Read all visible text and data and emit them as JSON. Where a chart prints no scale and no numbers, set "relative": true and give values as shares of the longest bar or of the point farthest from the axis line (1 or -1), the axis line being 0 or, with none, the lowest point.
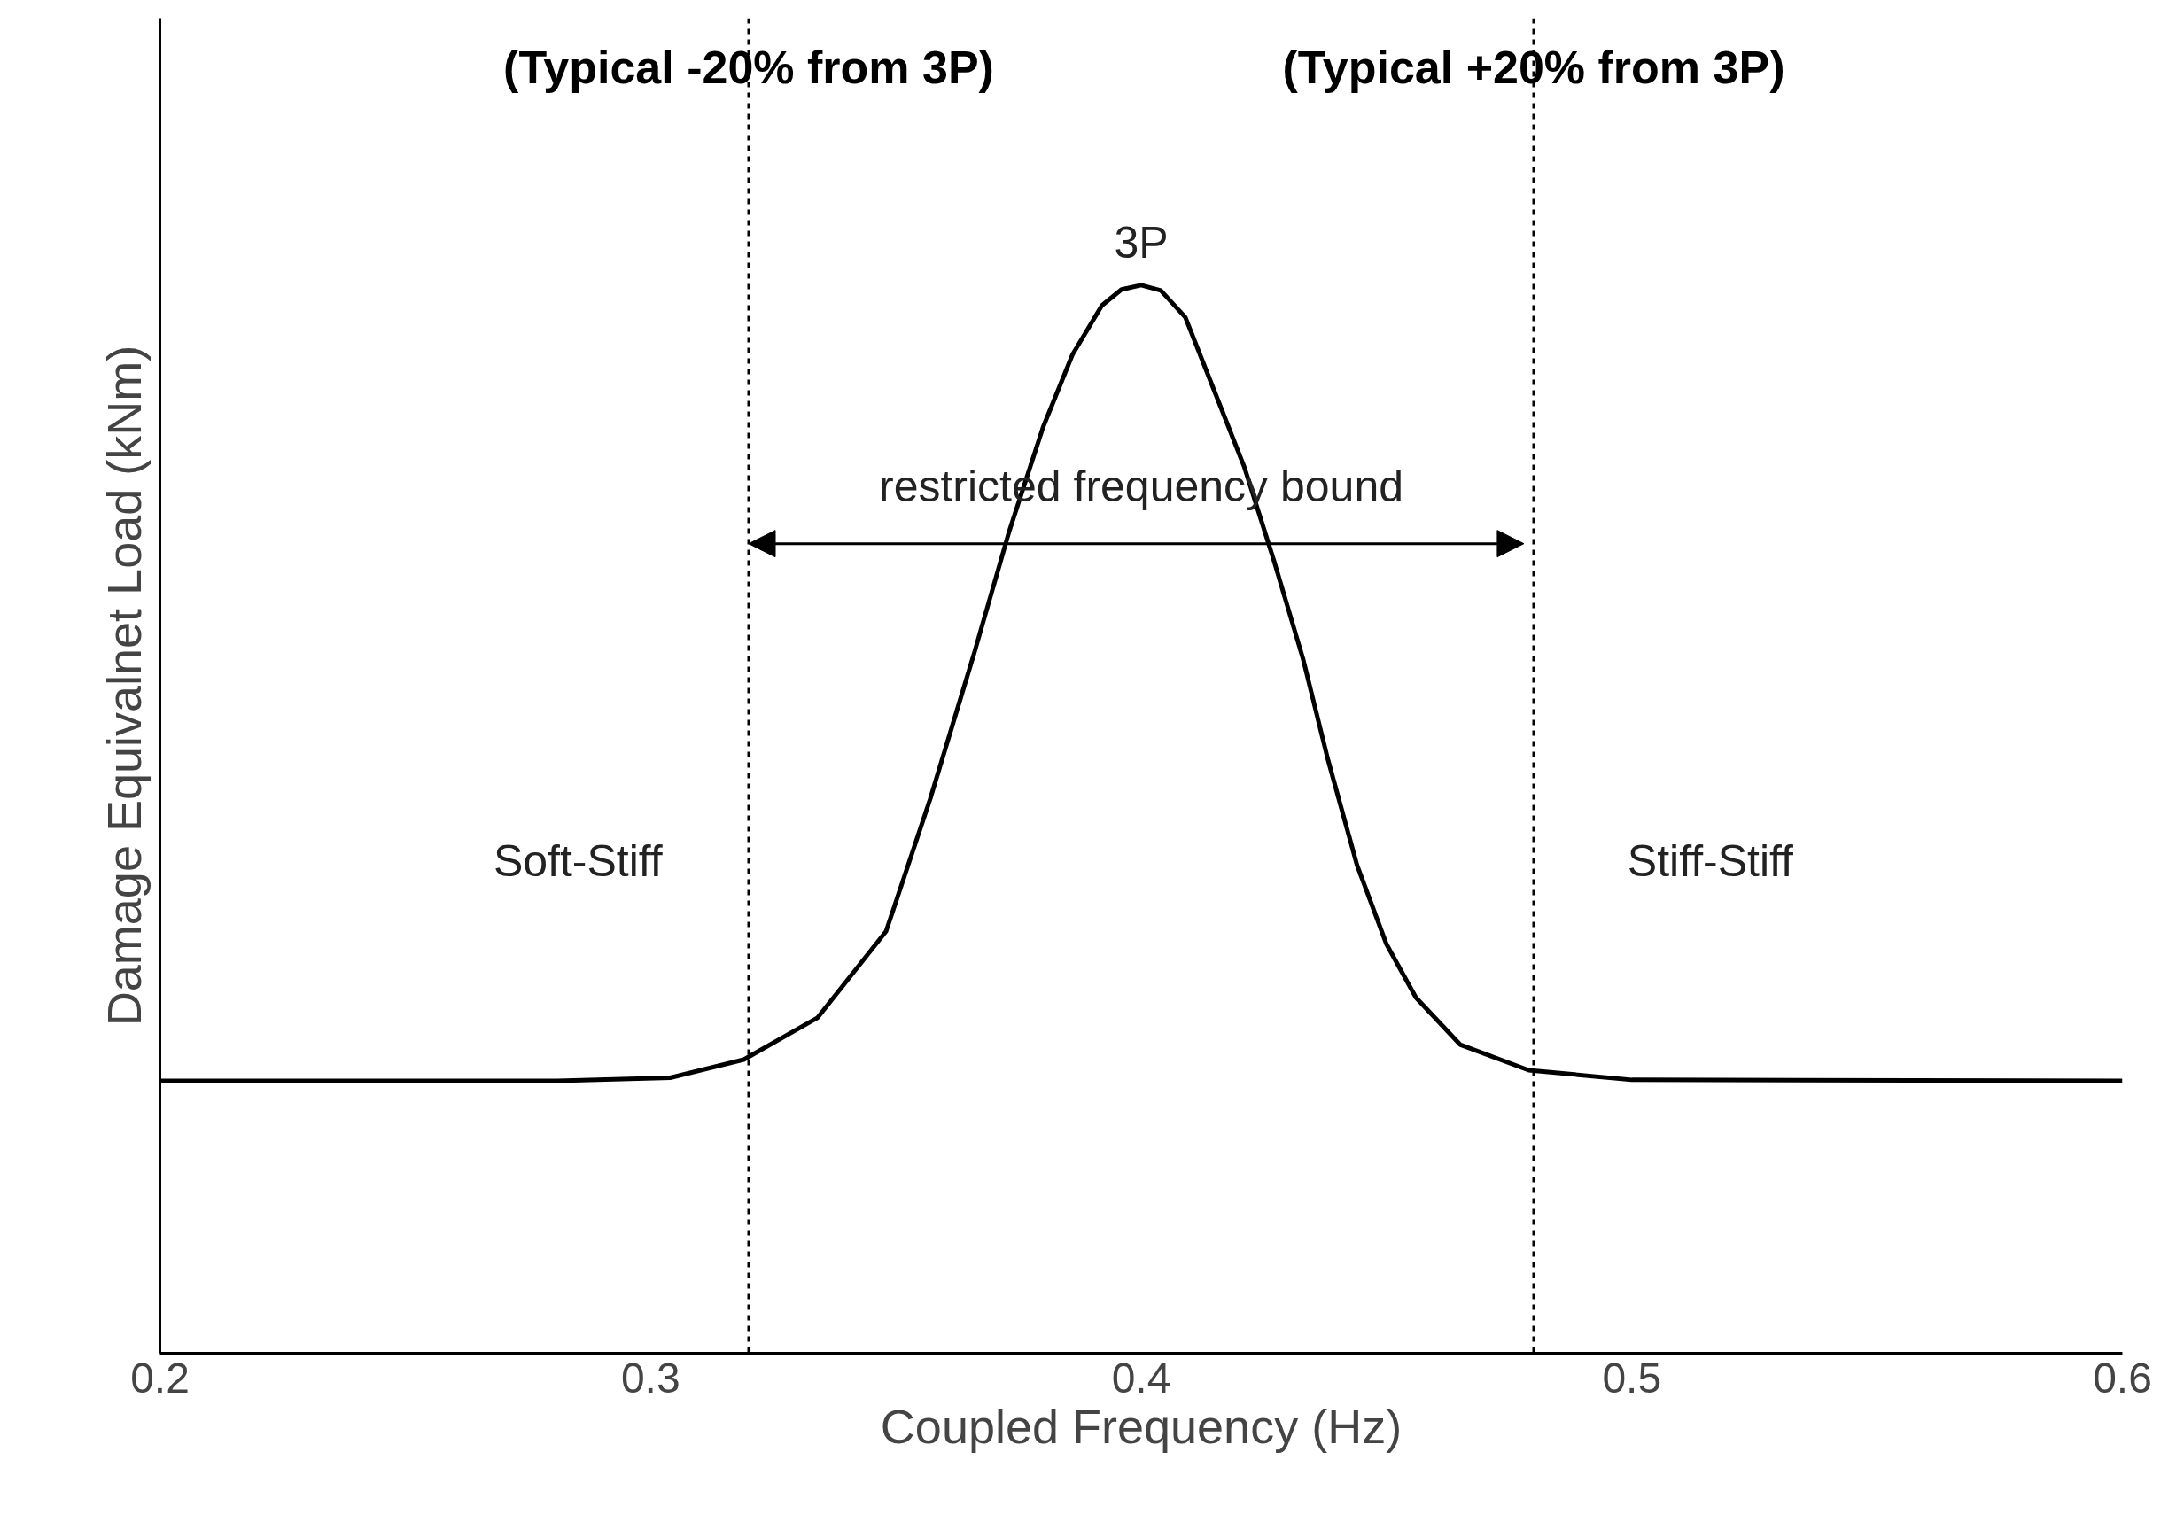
{
  "chart_data": {
    "type": "line",
    "relative": true,
    "xlabel": "Coupled Frequency (Hz)",
    "ylabel": "Damage Equivalnet Load (kNm)",
    "xlim": [
      0.2,
      0.6
    ],
    "xticks": [
      {
        "value": 0.2,
        "label": "0.2"
      },
      {
        "value": 0.3,
        "label": "0.3"
      },
      {
        "value": 0.4,
        "label": "0.4"
      },
      {
        "value": 0.5,
        "label": "0.5"
      },
      {
        "value": 0.6,
        "label": "0.6"
      }
    ],
    "x": [
      0.2,
      0.281,
      0.304,
      0.319,
      0.334,
      0.348,
      0.357,
      0.366,
      0.373,
      0.38,
      0.386,
      0.392,
      0.396,
      0.4,
      0.404,
      0.409,
      0.415,
      0.421,
      0.427,
      0.433,
      0.438,
      0.444,
      0.45,
      0.456,
      0.465,
      0.479,
      0.5,
      0.6
    ],
    "series": [
      {
        "color": "#000000",
        "values": [
          0.255,
          0.255,
          0.258,
          0.275,
          0.314,
          0.395,
          0.519,
          0.656,
          0.768,
          0.867,
          0.935,
          0.981,
          0.996,
          1.0,
          0.995,
          0.97,
          0.9,
          0.83,
          0.743,
          0.65,
          0.557,
          0.457,
          0.383,
          0.333,
          0.289,
          0.265,
          0.256,
          0.255
        ]
      }
    ],
    "ref_lines": [
      {
        "axis": "x",
        "value": 0.32,
        "label": "(Typical -20% from 3P)",
        "line_style": "dashed",
        "color": "#000000"
      },
      {
        "axis": "x",
        "value": 0.48,
        "label": "(Typical +20% from 3P)",
        "line_style": "dashed",
        "color": "#000000"
      }
    ],
    "annotations": [
      {
        "text": "3P",
        "x": 0.4,
        "y": 1.0
      },
      "restricted frequency bound",
      "Soft-Stiff",
      "Stiff-Stiff"
    ]
  }
}
